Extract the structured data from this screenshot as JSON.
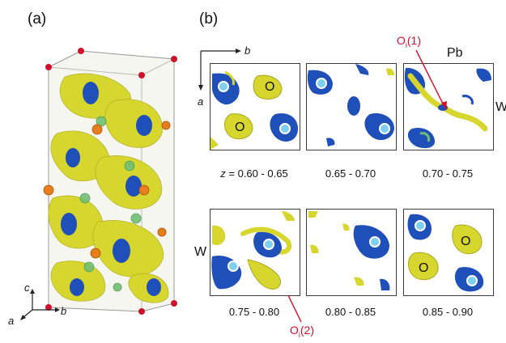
{
  "panels": {
    "a": "(a)",
    "b": "(b)"
  },
  "axes_a": {
    "c": "c",
    "a": "a",
    "b": "b"
  },
  "axes_b": {
    "b": "b",
    "a": "a"
  },
  "slice_captions": [
    "z = 0.60 - 0.65",
    "0.65 - 0.70",
    "0.70 - 0.75",
    "0.75 - 0.80",
    "0.80 - 0.85",
    "0.85 - 0.90"
  ],
  "atom_labels": {
    "O": "O",
    "Pb": "Pb",
    "W": "W"
  },
  "interstitials": {
    "oi1_main": "O",
    "oi1_sub": "i",
    "oi1_idx": "(1)",
    "oi2_main": "O",
    "oi2_sub": "i",
    "oi2_idx": "(2)"
  },
  "colors": {
    "yellow": "#d6d62e",
    "blue": "#1f4fb8",
    "red": "#d0102a"
  }
}
